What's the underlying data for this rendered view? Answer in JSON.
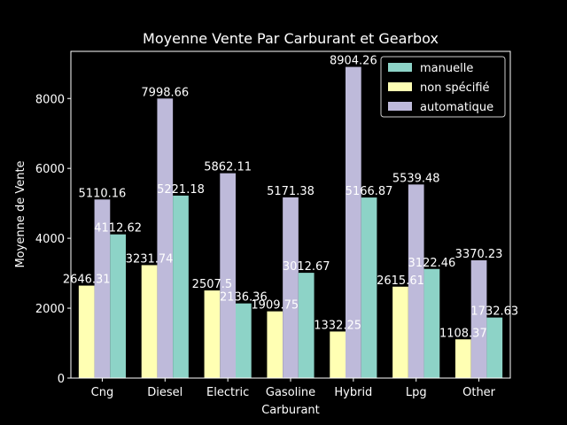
{
  "chart_data": {
    "type": "bar",
    "title": "Moyenne Vente Par Carburant et Gearbox",
    "xlabel": "Carburant",
    "ylabel": "Moyenne de Vente",
    "categories": [
      "Cng",
      "Diesel",
      "Electric",
      "Gasoline",
      "Hybrid",
      "Lpg",
      "Other"
    ],
    "series": [
      {
        "name": "non spécifié",
        "color": "#ffffb3",
        "values": [
          2646.31,
          3231.74,
          2507.5,
          1909.75,
          1332.25,
          2615.61,
          1108.37
        ],
        "labels": [
          "2646.31",
          "3231.74",
          "2507.5",
          "1909.75",
          "1332.25",
          "2615.61",
          "1108.37"
        ]
      },
      {
        "name": "automatique",
        "color": "#bebada",
        "values": [
          5110.16,
          7998.66,
          5862.11,
          5171.38,
          8904.26,
          5539.48,
          3370.23
        ],
        "labels": [
          "5110.16",
          "7998.66",
          "5862.11",
          "5171.38",
          "8904.26",
          "5539.48",
          "3370.23"
        ]
      },
      {
        "name": "manuelle",
        "color": "#8dd3c7",
        "values": [
          4112.62,
          5221.18,
          2136.36,
          3012.67,
          5166.87,
          3122.46,
          1732.63
        ],
        "labels": [
          "4112.62",
          "5221.18",
          "2136.36",
          "3012.67",
          "5166.87",
          "3122.46",
          "1732.63"
        ]
      }
    ],
    "legend_order": [
      "manuelle",
      "non spécifié",
      "automatique"
    ],
    "legend_position": "top-right",
    "ylim": [
      0,
      9349.47
    ],
    "yticks": [
      0,
      2000,
      4000,
      6000,
      8000
    ],
    "ytick_labels": [
      "0",
      "2000",
      "4000",
      "6000",
      "8000"
    ],
    "grid": false
  }
}
